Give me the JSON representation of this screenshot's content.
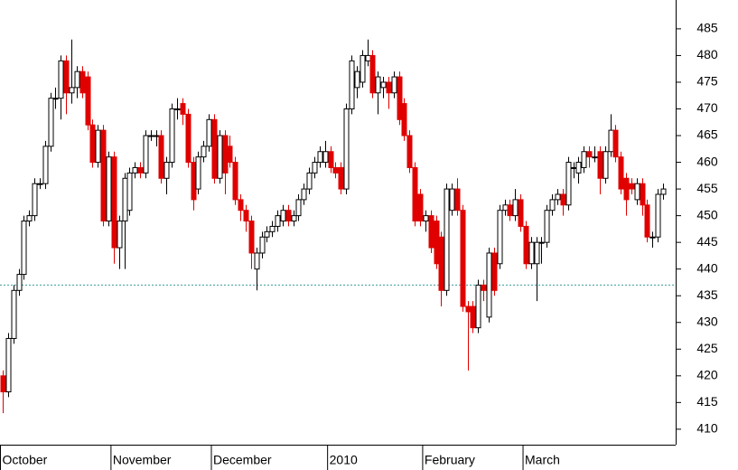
{
  "chart_data": {
    "type": "candlestick",
    "ylim": [
      407.1,
      490.4
    ],
    "yticks": [
      410,
      415,
      420,
      425,
      430,
      435,
      440,
      445,
      450,
      455,
      460,
      465,
      470,
      475,
      480,
      485
    ],
    "up_color": "#ffffff",
    "down_color": "#e00000",
    "reference_line": 437,
    "x_labels": [
      {
        "label": "October",
        "index": 0
      },
      {
        "label": "November",
        "index": 21
      },
      {
        "label": "December",
        "index": 40
      },
      {
        "label": "2010",
        "index": 62
      },
      {
        "label": "February",
        "index": 80
      },
      {
        "label": "March",
        "index": 99
      }
    ],
    "candles": [
      [
        420,
        421,
        413,
        417
      ],
      [
        417,
        428,
        416,
        427
      ],
      [
        427,
        437,
        426,
        436
      ],
      [
        436,
        440,
        435,
        439
      ],
      [
        439,
        450,
        438,
        449
      ],
      [
        449,
        451,
        448,
        450
      ],
      [
        450,
        457,
        449,
        456
      ],
      [
        456,
        457,
        455,
        456
      ],
      [
        456,
        464,
        455,
        463
      ],
      [
        463,
        473,
        462,
        472
      ],
      [
        472,
        474,
        470,
        472
      ],
      [
        472,
        480,
        468,
        479
      ],
      [
        479,
        480,
        469,
        473
      ],
      [
        473,
        483,
        471,
        474
      ],
      [
        474,
        478,
        472,
        477
      ],
      [
        477,
        478,
        472,
        473
      ],
      [
        476,
        477,
        466,
        467
      ],
      [
        467,
        468,
        459,
        460
      ],
      [
        460,
        467,
        459,
        466
      ],
      [
        466,
        467,
        448,
        449
      ],
      [
        449,
        462,
        448,
        461
      ],
      [
        461,
        462,
        441,
        444
      ],
      [
        444,
        450,
        440,
        449
      ],
      [
        449,
        458,
        440,
        457
      ],
      [
        451,
        459,
        450,
        458
      ],
      [
        458,
        460,
        457,
        459
      ],
      [
        459,
        460,
        457,
        458
      ],
      [
        458,
        466,
        457,
        465
      ],
      [
        465,
        466,
        464,
        465
      ],
      [
        465,
        466,
        463,
        465
      ],
      [
        465,
        466,
        456,
        457
      ],
      [
        457,
        461,
        454,
        460
      ],
      [
        460,
        471,
        459,
        470
      ],
      [
        470,
        472,
        468,
        470
      ],
      [
        471,
        472,
        467,
        469
      ],
      [
        469,
        470,
        459,
        460
      ],
      [
        460,
        461,
        451,
        453
      ],
      [
        455,
        462,
        454,
        461
      ],
      [
        461,
        464,
        460,
        463
      ],
      [
        463,
        469,
        462,
        468
      ],
      [
        468,
        469,
        456,
        457
      ],
      [
        457,
        466,
        456,
        465
      ],
      [
        465,
        466,
        454,
        458
      ],
      [
        463,
        465,
        459,
        460
      ],
      [
        460,
        461,
        452,
        453
      ],
      [
        453,
        454,
        449,
        451
      ],
      [
        451,
        452,
        447,
        449
      ],
      [
        449,
        450,
        440,
        443
      ],
      [
        440,
        444,
        436,
        443
      ],
      [
        443,
        447,
        442,
        446
      ],
      [
        446,
        448,
        445,
        447
      ],
      [
        447,
        449,
        446,
        448
      ],
      [
        448,
        451,
        447,
        450
      ],
      [
        449,
        452,
        448,
        451
      ],
      [
        451,
        452,
        448,
        449
      ],
      [
        449,
        451,
        448,
        450
      ],
      [
        450,
        454,
        449,
        453
      ],
      [
        453,
        456,
        452,
        455
      ],
      [
        455,
        459,
        454,
        458
      ],
      [
        458,
        461,
        457,
        460
      ],
      [
        460,
        463,
        459,
        462
      ],
      [
        460,
        464,
        459,
        462
      ],
      [
        462,
        463,
        458,
        459
      ],
      [
        459,
        460,
        457,
        458
      ],
      [
        459,
        460,
        454,
        455
      ],
      [
        455,
        471,
        454,
        470
      ],
      [
        470,
        480,
        469,
        479
      ],
      [
        474,
        478,
        472,
        477
      ],
      [
        475,
        481,
        474,
        480
      ],
      [
        479,
        483,
        478,
        480
      ],
      [
        480,
        481,
        472,
        473
      ],
      [
        473,
        477,
        469,
        476
      ],
      [
        474,
        476,
        472,
        475
      ],
      [
        475,
        476,
        470,
        473
      ],
      [
        473,
        477,
        472,
        476
      ],
      [
        476,
        477,
        467,
        468
      ],
      [
        471,
        472,
        464,
        465
      ],
      [
        465,
        466,
        458,
        459
      ],
      [
        459,
        460,
        448,
        449
      ],
      [
        454,
        455,
        448,
        449
      ],
      [
        449,
        451,
        447,
        450
      ],
      [
        450,
        451,
        443,
        444
      ],
      [
        449,
        450,
        440,
        441
      ],
      [
        446,
        447,
        433,
        436
      ],
      [
        436,
        456,
        435,
        455
      ],
      [
        451,
        456,
        450,
        455
      ],
      [
        455,
        457,
        450,
        451
      ],
      [
        451,
        452,
        432,
        433
      ],
      [
        433,
        434,
        421,
        432
      ],
      [
        433,
        434,
        428,
        429
      ],
      [
        429,
        438,
        428,
        437
      ],
      [
        437,
        438,
        434,
        436
      ],
      [
        431,
        444,
        430,
        443
      ],
      [
        443,
        444,
        435,
        436
      ],
      [
        441,
        452,
        440,
        451
      ],
      [
        451,
        453,
        450,
        452
      ],
      [
        452,
        453,
        449,
        450
      ],
      [
        450,
        455,
        449,
        453
      ],
      [
        453,
        454,
        447,
        448
      ],
      [
        448,
        449,
        440,
        441
      ],
      [
        441,
        446,
        440,
        445
      ],
      [
        441,
        446,
        434,
        445
      ],
      [
        445,
        446,
        441,
        445
      ],
      [
        445,
        452,
        444,
        451
      ],
      [
        451,
        454,
        450,
        453
      ],
      [
        453,
        455,
        452,
        454
      ],
      [
        454,
        455,
        450,
        452
      ],
      [
        452,
        461,
        451,
        460
      ],
      [
        459,
        460,
        457,
        459
      ],
      [
        458,
        461,
        456,
        460
      ],
      [
        459,
        463,
        458,
        462
      ],
      [
        462,
        463,
        459,
        461
      ],
      [
        461,
        463,
        460,
        461
      ],
      [
        462,
        463,
        454,
        457
      ],
      [
        457,
        463,
        456,
        462
      ],
      [
        462,
        469,
        461,
        466
      ],
      [
        466,
        467,
        460,
        461
      ],
      [
        461,
        462,
        454,
        455
      ],
      [
        457,
        458,
        450,
        453
      ],
      [
        456,
        457,
        454,
        455
      ],
      [
        453,
        457,
        452,
        456
      ],
      [
        456,
        457,
        450,
        452
      ],
      [
        452,
        453,
        445,
        446
      ],
      [
        446,
        447,
        444,
        446
      ],
      [
        446,
        455,
        445,
        454
      ],
      [
        454,
        456,
        453,
        455
      ]
    ]
  }
}
